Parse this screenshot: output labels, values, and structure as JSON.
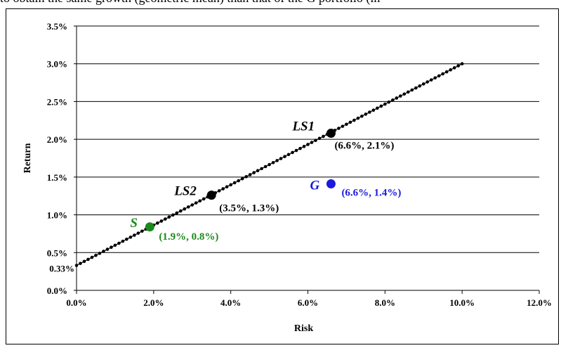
{
  "caption": "to obtain the same growth (geometric mean) than that of the G portfolio (in",
  "chart_data": {
    "type": "scatter",
    "title": "",
    "xlabel": "Risk",
    "ylabel": "Return",
    "xlim": [
      0,
      12
    ],
    "ylim": [
      0,
      3.5
    ],
    "x_ticks": [
      "0.0%",
      "2.0%",
      "4.0%",
      "6.0%",
      "8.0%",
      "10.0%",
      "12.0%"
    ],
    "y_ticks": [
      "0.0%",
      "0.5%",
      "1.0%",
      "1.5%",
      "2.0%",
      "2.5%",
      "3.0%",
      "3.5%"
    ],
    "y_extra_tick": "0.33%",
    "grid": "horizontal",
    "line": {
      "x_start": 0,
      "y_start": 0.33,
      "x_end": 10,
      "y_end": 3.0,
      "color": "#000000",
      "style": "dotted-markers"
    },
    "points": [
      {
        "name": "LS1",
        "x": 6.6,
        "y": 2.08,
        "label": "(6.6%, 2.1%)",
        "color": "#000000"
      },
      {
        "name": "LS2",
        "x": 3.5,
        "y": 1.26,
        "label": "(3.5%, 1.3%)",
        "color": "#000000"
      },
      {
        "name": "G",
        "x": 6.6,
        "y": 1.41,
        "label": "(6.6%, 1.4%)",
        "color": "#1a1adc"
      },
      {
        "name": "S",
        "x": 1.9,
        "y": 0.84,
        "label": "(1.9%, 0.8%)",
        "color": "#1a8a1a"
      }
    ]
  }
}
